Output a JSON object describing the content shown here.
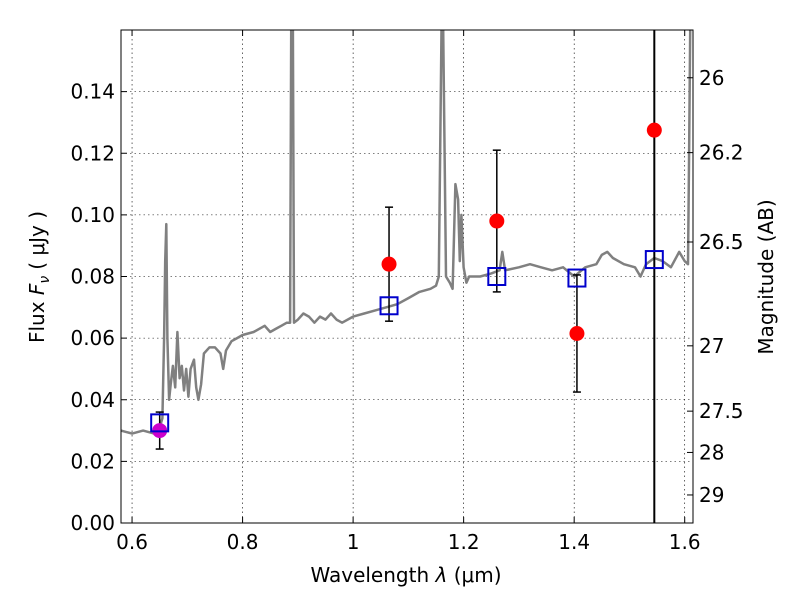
{
  "chart_data": {
    "type": "line",
    "xlabel_text": "Wavelength",
    "xlabel_symbol": "λ",
    "xlabel_unit": "(μm)",
    "ylabel_text": "Flux",
    "ylabel_symbol": "F",
    "ylabel_subscript": "ν",
    "ylabel_unit": "( μJy )",
    "y2label": "Magnitude (AB)",
    "xlim": [
      0.58,
      1.615
    ],
    "ylim": [
      0.0,
      0.16
    ],
    "grid": true,
    "x_ticks": [
      0.6,
      0.8,
      1.0,
      1.2,
      1.4,
      1.6
    ],
    "x_tick_labels": [
      "0.6",
      "0.8",
      "1",
      "1.2",
      "1.4",
      "1.6"
    ],
    "y_ticks": [
      0.0,
      0.02,
      0.04,
      0.06,
      0.08,
      0.1,
      0.12,
      0.14
    ],
    "y_tick_labels": [
      "0.00",
      "0.02",
      "0.04",
      "0.06",
      "0.08",
      "0.10",
      "0.12",
      "0.14"
    ],
    "y2_ticks": [
      {
        "label": "26",
        "flux": 0.1445
      },
      {
        "label": "26.2",
        "flux": 0.1202
      },
      {
        "label": "26.5",
        "flux": 0.0912
      },
      {
        "label": "27",
        "flux": 0.0575
      },
      {
        "label": "27.5",
        "flux": 0.0363
      },
      {
        "label": "28",
        "flux": 0.0229
      },
      {
        "label": "29",
        "flux": 0.0091
      }
    ],
    "model_spectrum": {
      "color": "#808080",
      "points": [
        [
          0.58,
          0.03
        ],
        [
          0.6,
          0.029
        ],
        [
          0.62,
          0.03
        ],
        [
          0.64,
          0.029
        ],
        [
          0.65,
          0.031
        ],
        [
          0.655,
          0.034
        ],
        [
          0.658,
          0.06
        ],
        [
          0.66,
          0.085
        ],
        [
          0.662,
          0.097
        ],
        [
          0.664,
          0.06
        ],
        [
          0.667,
          0.04
        ],
        [
          0.67,
          0.045
        ],
        [
          0.674,
          0.051
        ],
        [
          0.678,
          0.044
        ],
        [
          0.682,
          0.062
        ],
        [
          0.686,
          0.047
        ],
        [
          0.69,
          0.051
        ],
        [
          0.694,
          0.043
        ],
        [
          0.698,
          0.05
        ],
        [
          0.702,
          0.041
        ],
        [
          0.706,
          0.05
        ],
        [
          0.712,
          0.053
        ],
        [
          0.716,
          0.044
        ],
        [
          0.72,
          0.04
        ],
        [
          0.725,
          0.045
        ],
        [
          0.73,
          0.055
        ],
        [
          0.74,
          0.057
        ],
        [
          0.75,
          0.057
        ],
        [
          0.76,
          0.055
        ],
        [
          0.765,
          0.05
        ],
        [
          0.77,
          0.056
        ],
        [
          0.78,
          0.059
        ],
        [
          0.79,
          0.06
        ],
        [
          0.8,
          0.061
        ],
        [
          0.82,
          0.062
        ],
        [
          0.84,
          0.064
        ],
        [
          0.85,
          0.062
        ],
        [
          0.86,
          0.063
        ],
        [
          0.87,
          0.064
        ],
        [
          0.88,
          0.065
        ],
        [
          0.886,
          0.065
        ],
        [
          0.888,
          0.16
        ],
        [
          0.891,
          0.16
        ],
        [
          0.893,
          0.065
        ],
        [
          0.9,
          0.066
        ],
        [
          0.91,
          0.068
        ],
        [
          0.92,
          0.067
        ],
        [
          0.93,
          0.065
        ],
        [
          0.94,
          0.067
        ],
        [
          0.95,
          0.066
        ],
        [
          0.96,
          0.068
        ],
        [
          0.97,
          0.066
        ],
        [
          0.98,
          0.065
        ],
        [
          1.0,
          0.067
        ],
        [
          1.02,
          0.068
        ],
        [
          1.04,
          0.069
        ],
        [
          1.06,
          0.07
        ],
        [
          1.08,
          0.071
        ],
        [
          1.1,
          0.073
        ],
        [
          1.12,
          0.075
        ],
        [
          1.14,
          0.076
        ],
        [
          1.15,
          0.077
        ],
        [
          1.155,
          0.08
        ],
        [
          1.16,
          0.16
        ],
        [
          1.163,
          0.16
        ],
        [
          1.168,
          0.08
        ],
        [
          1.175,
          0.078
        ],
        [
          1.18,
          0.076
        ],
        [
          1.185,
          0.11
        ],
        [
          1.19,
          0.105
        ],
        [
          1.193,
          0.085
        ],
        [
          1.196,
          0.1
        ],
        [
          1.2,
          0.083
        ],
        [
          1.205,
          0.078
        ],
        [
          1.21,
          0.08
        ],
        [
          1.23,
          0.08
        ],
        [
          1.25,
          0.081
        ],
        [
          1.265,
          0.082
        ],
        [
          1.27,
          0.088
        ],
        [
          1.275,
          0.082
        ],
        [
          1.3,
          0.083
        ],
        [
          1.32,
          0.084
        ],
        [
          1.34,
          0.083
        ],
        [
          1.36,
          0.082
        ],
        [
          1.38,
          0.083
        ],
        [
          1.4,
          0.08
        ],
        [
          1.42,
          0.083
        ],
        [
          1.44,
          0.084
        ],
        [
          1.45,
          0.087
        ],
        [
          1.46,
          0.088
        ],
        [
          1.47,
          0.086
        ],
        [
          1.49,
          0.084
        ],
        [
          1.51,
          0.083
        ],
        [
          1.52,
          0.08
        ],
        [
          1.53,
          0.084
        ],
        [
          1.545,
          0.086
        ],
        [
          1.56,
          0.085
        ],
        [
          1.575,
          0.083
        ],
        [
          1.59,
          0.088
        ],
        [
          1.6,
          0.085
        ],
        [
          1.606,
          0.084
        ],
        [
          1.608,
          0.12
        ],
        [
          1.61,
          0.16
        ]
      ]
    },
    "observed_points": {
      "color": "#ff0000",
      "points": [
        {
          "x": 1.065,
          "y": 0.084,
          "err": 0.0185
        },
        {
          "x": 1.26,
          "y": 0.098,
          "err": 0.023
        },
        {
          "x": 1.405,
          "y": 0.0615,
          "err": 0.019
        },
        {
          "x": 1.545,
          "y": 0.1275,
          "err": null
        }
      ]
    },
    "magenta_point": {
      "color": "#cc00cc",
      "x": 0.65,
      "y": 0.03,
      "err": 0.006
    },
    "model_boxes": {
      "color": "#0000cc",
      "points": [
        {
          "x": 0.65,
          "y": 0.0325
        },
        {
          "x": 1.065,
          "y": 0.0705
        },
        {
          "x": 1.26,
          "y": 0.08
        },
        {
          "x": 1.405,
          "y": 0.0795
        },
        {
          "x": 1.545,
          "y": 0.0855
        }
      ]
    },
    "vertical_line": {
      "x": 1.545,
      "color": "#000000"
    }
  }
}
